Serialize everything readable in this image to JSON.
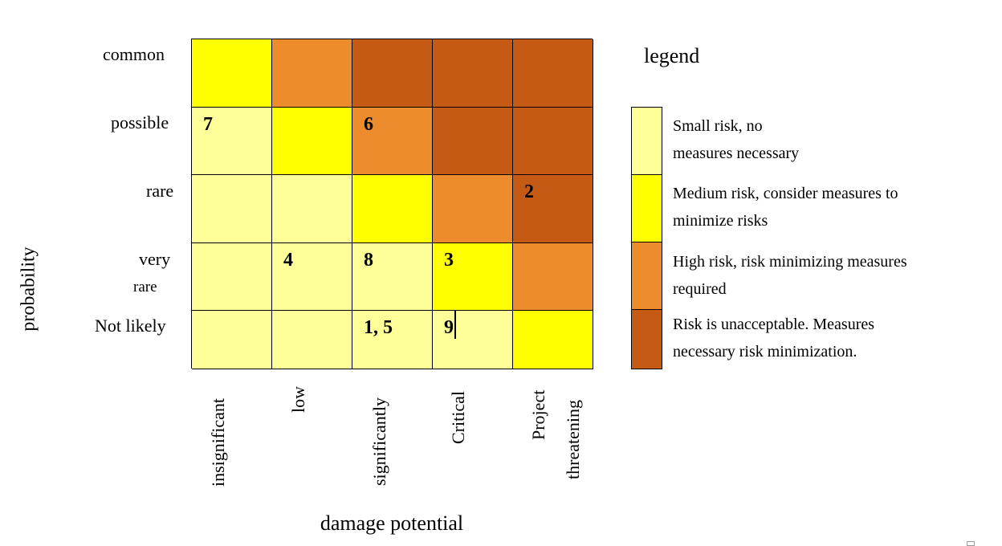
{
  "y_axis_title": "probability",
  "x_axis_title": "damage potential",
  "row_labels": [
    "common",
    "possible",
    "rare",
    "very",
    "rare",
    "Not likely"
  ],
  "column_labels": [
    "insignificant",
    "low",
    "significantly",
    "Critical",
    "Project",
    "threatening"
  ],
  "colors": {
    "small": "#FFFF99",
    "medium": "#FFFF00",
    "high": "#EC8C2D",
    "unacceptable": "#C45A14"
  },
  "matrix": [
    [
      {
        "level": "medium",
        "text": ""
      },
      {
        "level": "high",
        "text": ""
      },
      {
        "level": "unacceptable",
        "text": ""
      },
      {
        "level": "unacceptable",
        "text": ""
      },
      {
        "level": "unacceptable",
        "text": ""
      }
    ],
    [
      {
        "level": "small",
        "text": "7"
      },
      {
        "level": "medium",
        "text": ""
      },
      {
        "level": "high",
        "text": "6"
      },
      {
        "level": "unacceptable",
        "text": ""
      },
      {
        "level": "unacceptable",
        "text": ""
      }
    ],
    [
      {
        "level": "small",
        "text": ""
      },
      {
        "level": "small",
        "text": ""
      },
      {
        "level": "medium",
        "text": ""
      },
      {
        "level": "high",
        "text": ""
      },
      {
        "level": "unacceptable",
        "text": "2"
      }
    ],
    [
      {
        "level": "small",
        "text": ""
      },
      {
        "level": "small",
        "text": "4"
      },
      {
        "level": "small",
        "text": "8"
      },
      {
        "level": "medium",
        "text": "3"
      },
      {
        "level": "high",
        "text": ""
      }
    ],
    [
      {
        "level": "small",
        "text": ""
      },
      {
        "level": "small",
        "text": ""
      },
      {
        "level": "small",
        "text": "1, 5"
      },
      {
        "level": "small",
        "text": "9"
      },
      {
        "level": "medium",
        "text": ""
      }
    ]
  ],
  "legend": {
    "title": "legend",
    "items": [
      {
        "level": "small",
        "line1": "Small risk, no",
        "line2": "measures necessary"
      },
      {
        "level": "medium",
        "line1": "Medium risk, consider measures to",
        "line2": "minimize risks"
      },
      {
        "level": "high",
        "line1": "High risk, risk minimizing measures",
        "line2": "required"
      },
      {
        "level": "unacceptable",
        "line1": "Risk is unacceptable. Measures",
        "line2": "necessary risk minimization."
      }
    ]
  }
}
